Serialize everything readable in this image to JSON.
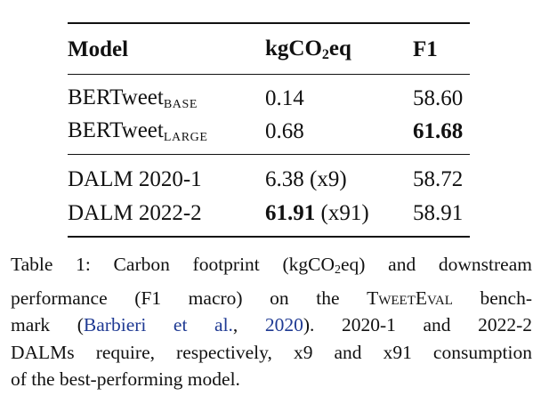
{
  "table": {
    "headers": {
      "model": "Model",
      "co2_prefix": "kgCO",
      "co2_sub": "2",
      "co2_suffix": "eq",
      "f1": "F1"
    },
    "rows": [
      {
        "model_main": "BERTweet",
        "model_sub": "BASE",
        "co2": "0.14",
        "co2_note": "",
        "f1": "58.60",
        "f1_bold": false,
        "co2_bold": false
      },
      {
        "model_main": "BERTweet",
        "model_sub": "LARGE",
        "co2": "0.68",
        "co2_note": "",
        "f1": "61.68",
        "f1_bold": true,
        "co2_bold": false
      },
      {
        "model_main": "DALM 2020-1",
        "model_sub": "",
        "co2": "6.38",
        "co2_note": "(x9)",
        "f1": "58.72",
        "f1_bold": false,
        "co2_bold": false
      },
      {
        "model_main": "DALM 2022-2",
        "model_sub": "",
        "co2": "61.91",
        "co2_note": "(x91)",
        "f1": "58.91",
        "f1_bold": false,
        "co2_bold": true
      }
    ]
  },
  "caption": {
    "line1_a": "Table 1: Carbon footprint (kgCO",
    "line1_sub": "2",
    "line1_b": "eq) and downstream",
    "line2_a": "performance (F1 macro) on the ",
    "line2_sc": "TweetEval",
    "line2_b": " bench-",
    "line3_a": "mark (",
    "line3_cite_author": "Barbieri et al.",
    "line3_comma": ", ",
    "line3_cite_year": "2020",
    "line3_b": ").   2020-1 and 2022-2",
    "line4": "DALMs require, respectively, x9 and x91 consumption",
    "line5": "of the best-performing model."
  }
}
